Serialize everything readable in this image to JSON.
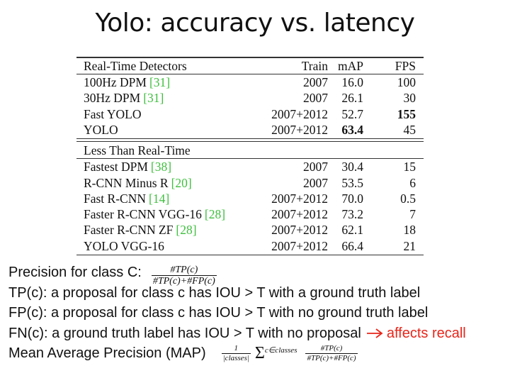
{
  "title": "Yolo: accuracy vs. latency",
  "table": {
    "columns": [
      "Train",
      "mAP",
      "FPS"
    ],
    "sections": [
      {
        "header": "Real-Time Detectors",
        "rows": [
          {
            "name": "100Hz DPM",
            "ref": "[31]",
            "train": "2007",
            "map": "16.0",
            "fps": "100"
          },
          {
            "name": "30Hz DPM",
            "ref": "[31]",
            "train": "2007",
            "map": "26.1",
            "fps": "30"
          },
          {
            "name": "Fast YOLO",
            "train": "2007+2012",
            "map": "52.7",
            "fps": "155",
            "bold": "fps"
          },
          {
            "name": "YOLO",
            "train": "2007+2012",
            "map": "63.4",
            "fps": "45",
            "bold": "map"
          }
        ]
      },
      {
        "header": "Less Than Real-Time",
        "rows": [
          {
            "name": "Fastest DPM",
            "ref": "[38]",
            "train": "2007",
            "map": "30.4",
            "fps": "15"
          },
          {
            "name": "R-CNN Minus R",
            "ref": "[20]",
            "train": "2007",
            "map": "53.5",
            "fps": "6"
          },
          {
            "name": "Fast R-CNN",
            "ref": "[14]",
            "train": "2007+2012",
            "map": "70.0",
            "fps": "0.5"
          },
          {
            "name": "Faster R-CNN VGG-16",
            "ref": "[28]",
            "train": "2007+2012",
            "map": "73.2",
            "fps": "7"
          },
          {
            "name": "Faster R-CNN ZF",
            "ref": "[28]",
            "train": "2007+2012",
            "map": "62.1",
            "fps": "18"
          },
          {
            "name": "YOLO VGG-16",
            "train": "2007+2012",
            "map": "66.4",
            "fps": "21"
          }
        ]
      }
    ]
  },
  "notes": [
    {
      "text": "Precision for class C:",
      "fraction": {
        "num": "#TP(c)",
        "den": "#TP(c)+#FP(c)"
      }
    },
    {
      "text": "TP(c): a proposal for class c has IOU > T with a ground truth label"
    },
    {
      "text": "FP(c): a proposal for class c has IOU > T with no ground truth label"
    },
    {
      "text": "FN(c): a ground truth label has IOU > T with no proposal",
      "highlight": "affects recall"
    },
    {
      "text": "Mean Average Precision (MAP)",
      "scale": {
        "num": "1",
        "den": "|classes|"
      },
      "sum": "Σ",
      "sub": "c∈classes",
      "fraction": {
        "num": "#TP(c)",
        "den": "#TP(c)+#FP(c)"
      }
    }
  ]
}
